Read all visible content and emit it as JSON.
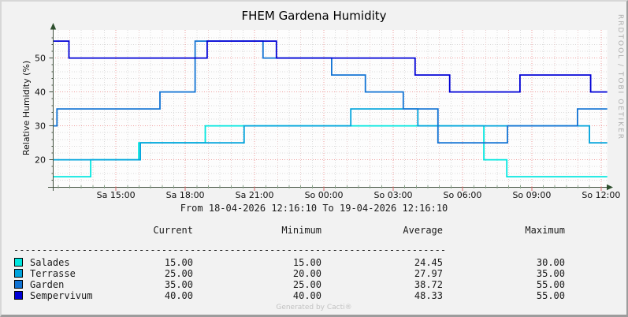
{
  "title": "FHEM Gardena Humidity",
  "watermark_right": "RRDTOOL / TOBI OETIKER",
  "footer": "Generated by Cacti®",
  "chart_data": {
    "type": "line",
    "title": "FHEM Gardena Humidity",
    "ylabel": "Relative Humidity (%)",
    "x_range_label": "From 18-04-2026 12:16:10 To 19-04-2026 12:16:10",
    "xlim_hours": [
      0,
      24
    ],
    "ylim": [
      12,
      58.3
    ],
    "grid": "on",
    "y_ticks": [
      20,
      30,
      40,
      50
    ],
    "x_ticks": [
      {
        "t": 2.7333,
        "label": "Sa 15:00"
      },
      {
        "t": 5.7333,
        "label": "Sa 18:00"
      },
      {
        "t": 8.7333,
        "label": "Sa 21:00"
      },
      {
        "t": 11.7333,
        "label": "So 00:00"
      },
      {
        "t": 14.7333,
        "label": "So 03:00"
      },
      {
        "t": 17.7333,
        "label": "So 06:00"
      },
      {
        "t": 20.7333,
        "label": "So 09:00"
      },
      {
        "t": 23.7333,
        "label": "So 12:00"
      }
    ],
    "series": [
      {
        "name": "Salades",
        "color": "#00e6df",
        "points": [
          [
            0,
            15
          ],
          [
            1.64,
            20
          ],
          [
            3.72,
            25
          ],
          [
            6.6,
            30
          ],
          [
            18.66,
            20
          ],
          [
            19.65,
            15
          ],
          [
            24,
            15
          ]
        ]
      },
      {
        "name": "Terrasse",
        "color": "#00a3dc",
        "points": [
          [
            0,
            20
          ],
          [
            3.79,
            25
          ],
          [
            8.28,
            30
          ],
          [
            12.9,
            35
          ],
          [
            15.8,
            30
          ],
          [
            23.23,
            25
          ],
          [
            24,
            25
          ]
        ]
      },
      {
        "name": "Garden",
        "color": "#1173d4",
        "points": [
          [
            0,
            30
          ],
          [
            0.18,
            35
          ],
          [
            4.64,
            40
          ],
          [
            6.16,
            55
          ],
          [
            9.1,
            50
          ],
          [
            12.07,
            45
          ],
          [
            13.53,
            40
          ],
          [
            15.17,
            35
          ],
          [
            16.67,
            25
          ],
          [
            19.68,
            30
          ],
          [
            22.71,
            35
          ],
          [
            24,
            35
          ]
        ]
      },
      {
        "name": "Sempervivum",
        "color": "#0000d6",
        "points": [
          [
            0,
            55
          ],
          [
            0.7,
            50
          ],
          [
            6.68,
            55
          ],
          [
            9.68,
            50
          ],
          [
            15.68,
            45
          ],
          [
            17.18,
            40
          ],
          [
            20.22,
            45
          ],
          [
            23.28,
            40
          ],
          [
            24,
            40
          ]
        ]
      }
    ],
    "legend": {
      "headers": [
        "Current",
        "Minimum",
        "Average",
        "Maximum"
      ],
      "separator": "----------------------------------------------------------------------------",
      "rows": [
        {
          "name": "Salades",
          "current": "15.00",
          "minimum": "15.00",
          "average": "24.45",
          "maximum": "30.00"
        },
        {
          "name": "Terrasse",
          "current": "25.00",
          "minimum": "20.00",
          "average": "27.97",
          "maximum": "35.00"
        },
        {
          "name": "Garden",
          "current": "35.00",
          "minimum": "25.00",
          "average": "38.72",
          "maximum": "55.00"
        },
        {
          "name": "Sempervivum",
          "current": "40.00",
          "minimum": "40.00",
          "average": "48.33",
          "maximum": "55.00"
        }
      ]
    }
  }
}
